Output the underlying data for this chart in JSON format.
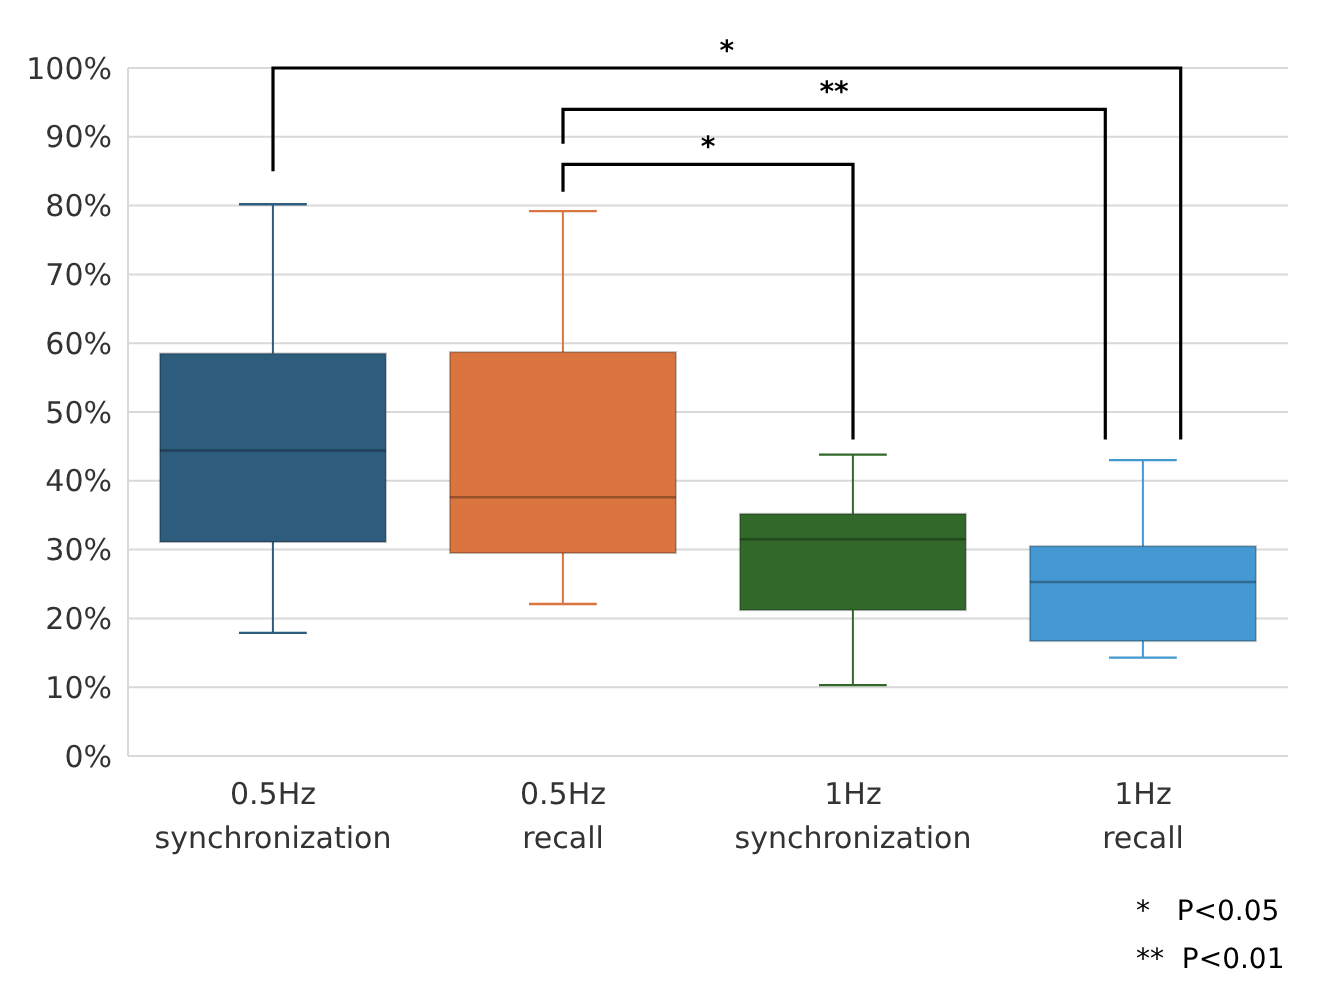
{
  "chart_data": {
    "type": "box",
    "categories": [
      "0.5Hz\nsynchronization",
      "0.5Hz\nrecall",
      "1Hz\nsynchronization",
      "1Hz\nrecall"
    ],
    "colors": [
      "#2d5c7c",
      "#db7540",
      "#32692b",
      "#4499d2"
    ],
    "boxes": [
      {
        "low": 17.9,
        "q1": 31.1,
        "median": 44.4,
        "q3": 58.5,
        "high": 80.2
      },
      {
        "low": 22.1,
        "q1": 29.5,
        "median": 37.6,
        "q3": 58.7,
        "high": 79.2
      },
      {
        "low": 10.3,
        "q1": 21.2,
        "median": 31.5,
        "q3": 35.2,
        "high": 43.8
      },
      {
        "low": 14.3,
        "q1": 16.7,
        "median": 25.3,
        "q3": 30.5,
        "high": 43.0
      }
    ],
    "ylim": [
      0,
      100
    ],
    "yticks": [
      {
        "value": 0,
        "label": "0%"
      },
      {
        "value": 10,
        "label": "10%"
      },
      {
        "value": 20,
        "label": "20%"
      },
      {
        "value": 30,
        "label": "30%"
      },
      {
        "value": 40,
        "label": "40%"
      },
      {
        "value": 50,
        "label": "50%"
      },
      {
        "value": 60,
        "label": "60%"
      },
      {
        "value": 70,
        "label": "70%"
      },
      {
        "value": 80,
        "label": "80%"
      },
      {
        "value": 90,
        "label": "90%"
      },
      {
        "value": 100,
        "label": "100%"
      }
    ],
    "grid": "y",
    "annotations": [
      "*",
      "**",
      "*",
      "*   P<0.05",
      "**  P<0.01"
    ]
  }
}
